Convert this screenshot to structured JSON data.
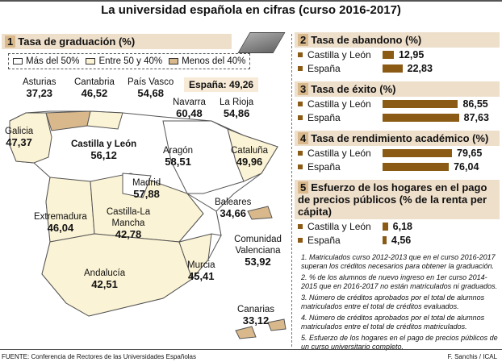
{
  "title": "La universidad española en cifras (curso 2016-2017)",
  "colors": {
    "bar": "#8b5a14",
    "header": "#eedfcb",
    "over50": "#ffffff",
    "between": "#fbf3d5",
    "under40": "#d9b98c"
  },
  "section1": {
    "num": "1",
    "title": "Tasa de graduación (%)",
    "legend": [
      "Más del 50%",
      "Entre 50 y 40%",
      "Menos del 40%"
    ],
    "spain": "España: 49,26",
    "regions": [
      {
        "name": "Asturias",
        "value": "37,23"
      },
      {
        "name": "Cantabria",
        "value": "46,52"
      },
      {
        "name": "País Vasco",
        "value": "54,68"
      },
      {
        "name": "Navarra",
        "value": "60,48"
      },
      {
        "name": "La Rioja",
        "value": "54,86"
      },
      {
        "name": "Galicia",
        "value": "47,37"
      },
      {
        "name": "Castilla y León",
        "value": "56,12"
      },
      {
        "name": "Aragón",
        "value": "58,51"
      },
      {
        "name": "Cataluña",
        "value": "49,96"
      },
      {
        "name": "Madrid",
        "value": "57,88"
      },
      {
        "name": "Baleares",
        "value": "34,66"
      },
      {
        "name": "Extremadura",
        "value": "46,04"
      },
      {
        "name": "Castilla-La Mancha",
        "value": "42,78"
      },
      {
        "name": "Comunidad Valenciana",
        "value": "53,92"
      },
      {
        "name": "Andalucía",
        "value": "42,51"
      },
      {
        "name": "Murcia",
        "value": "45,41"
      },
      {
        "name": "Canarias",
        "value": "33,12"
      }
    ]
  },
  "sections": [
    {
      "num": "2",
      "title": "Tasa de abandono (%)",
      "rows": [
        {
          "label": "Castilla y León",
          "value": "12,95"
        },
        {
          "label": "España",
          "value": "22,83"
        }
      ]
    },
    {
      "num": "3",
      "title": "Tasa de éxito (%)",
      "rows": [
        {
          "label": "Castilla y León",
          "value": "86,55"
        },
        {
          "label": "España",
          "value": "87,63"
        }
      ]
    },
    {
      "num": "4",
      "title": "Tasa de rendimiento académico (%)",
      "rows": [
        {
          "label": "Castilla y León",
          "value": "79,65"
        },
        {
          "label": "España",
          "value": "76,04"
        }
      ]
    },
    {
      "num": "5",
      "title": "Esfuerzo de los hogares en el pago de precios públicos (% de la renta per cápita)",
      "rows": [
        {
          "label": "Castilla y León",
          "value": "6,18"
        },
        {
          "label": "España",
          "value": "4,56"
        }
      ]
    }
  ],
  "notes": [
    "1. Matriculados curso 2012-2013 que en el curso 2016-2017 superan los créditos necesarios para obtener la graduación.",
    "2. % de los alumnos de nuevo ingreso en 1er curso 2014-2015 que en 2016-2017 no están matriculados ni graduados.",
    "3. Número de créditos aprobados por el total de alumnos matriculados entre el total de créditos evaluados.",
    "4. Número de créditos aprobados por el total de alumnos matriculados entre el total de créditos matriculados.",
    "5. Esfuerzo de los hogares en el pago de precios públicos de un curso universitario completo."
  ],
  "source": "FUENTE: Conferencia de Rectores de las Universidades Españolas",
  "credit": "F. Sanchis / ICAL",
  "chart_data": [
    {
      "type": "bar",
      "title": "Tasa de abandono (%)",
      "categories": [
        "Castilla y León",
        "España"
      ],
      "values": [
        12.95,
        22.83
      ]
    },
    {
      "type": "bar",
      "title": "Tasa de éxito (%)",
      "categories": [
        "Castilla y León",
        "España"
      ],
      "values": [
        86.55,
        87.63
      ]
    },
    {
      "type": "bar",
      "title": "Tasa de rendimiento académico (%)",
      "categories": [
        "Castilla y León",
        "España"
      ],
      "values": [
        79.65,
        76.04
      ]
    },
    {
      "type": "bar",
      "title": "Esfuerzo de los hogares en el pago de precios públicos (% de la renta per cápita)",
      "categories": [
        "Castilla y León",
        "España"
      ],
      "values": [
        6.18,
        4.56
      ]
    }
  ]
}
